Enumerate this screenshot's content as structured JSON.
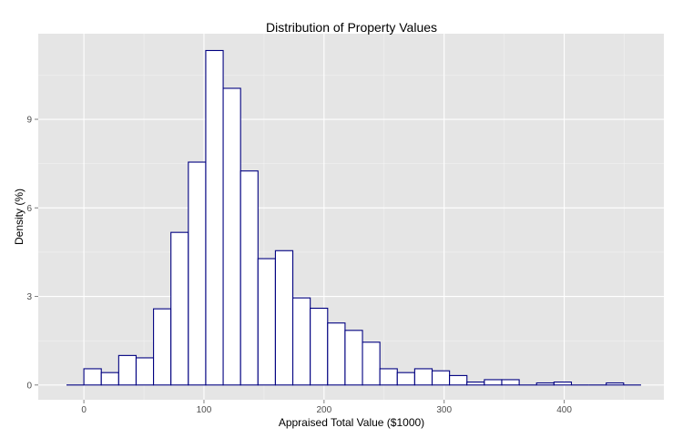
{
  "chart_data": {
    "type": "histogram",
    "title": "Distribution of Property Values",
    "xlabel": "Appraised Total Value ($1000)",
    "ylabel": "Density (%)",
    "xlim": [
      -38,
      483
    ],
    "ylim": [
      -0.5,
      11.9
    ],
    "x_ticks": [
      0,
      100,
      200,
      300,
      400
    ],
    "y_ticks": [
      0,
      3,
      6,
      9
    ],
    "grid": true,
    "bin_width": 14.5,
    "bins": [
      {
        "x0": -14.5,
        "x1": 0,
        "value": 0
      },
      {
        "x0": 0,
        "x1": 14.5,
        "value": 0.55
      },
      {
        "x0": 14.5,
        "x1": 29,
        "value": 0.42
      },
      {
        "x0": 29,
        "x1": 43.5,
        "value": 1.0
      },
      {
        "x0": 43.5,
        "x1": 58,
        "value": 0.92
      },
      {
        "x0": 58,
        "x1": 72.5,
        "value": 2.58
      },
      {
        "x0": 72.5,
        "x1": 87,
        "value": 5.17
      },
      {
        "x0": 87,
        "x1": 101.5,
        "value": 7.55
      },
      {
        "x0": 101.5,
        "x1": 116,
        "value": 11.33
      },
      {
        "x0": 116,
        "x1": 130.5,
        "value": 10.05
      },
      {
        "x0": 130.5,
        "x1": 145,
        "value": 7.25
      },
      {
        "x0": 145,
        "x1": 159.5,
        "value": 4.28
      },
      {
        "x0": 159.5,
        "x1": 174,
        "value": 4.55
      },
      {
        "x0": 174,
        "x1": 188.5,
        "value": 2.95
      },
      {
        "x0": 188.5,
        "x1": 203,
        "value": 2.6
      },
      {
        "x0": 203,
        "x1": 217.5,
        "value": 2.1
      },
      {
        "x0": 217.5,
        "x1": 232,
        "value": 1.85
      },
      {
        "x0": 232,
        "x1": 246.5,
        "value": 1.45
      },
      {
        "x0": 246.5,
        "x1": 261,
        "value": 0.55
      },
      {
        "x0": 261,
        "x1": 275.5,
        "value": 0.42
      },
      {
        "x0": 275.5,
        "x1": 290,
        "value": 0.55
      },
      {
        "x0": 290,
        "x1": 304.5,
        "value": 0.48
      },
      {
        "x0": 304.5,
        "x1": 319,
        "value": 0.32
      },
      {
        "x0": 319,
        "x1": 333.5,
        "value": 0.1
      },
      {
        "x0": 333.5,
        "x1": 348,
        "value": 0.18
      },
      {
        "x0": 348,
        "x1": 362.5,
        "value": 0.18
      },
      {
        "x0": 362.5,
        "x1": 377,
        "value": 0.0
      },
      {
        "x0": 377,
        "x1": 391.5,
        "value": 0.07
      },
      {
        "x0": 391.5,
        "x1": 406,
        "value": 0.1
      },
      {
        "x0": 406,
        "x1": 420.5,
        "value": 0.0
      },
      {
        "x0": 420.5,
        "x1": 435,
        "value": 0.0
      },
      {
        "x0": 435,
        "x1": 449.5,
        "value": 0.07
      },
      {
        "x0": 449.5,
        "x1": 464,
        "value": 0.0
      }
    ],
    "colors": {
      "panel_background": "#e5e5e5",
      "grid_major": "#ffffff",
      "grid_minor": "#f2f2f2",
      "bar_fill": "#ffffff",
      "bar_outline": "#000080"
    }
  }
}
